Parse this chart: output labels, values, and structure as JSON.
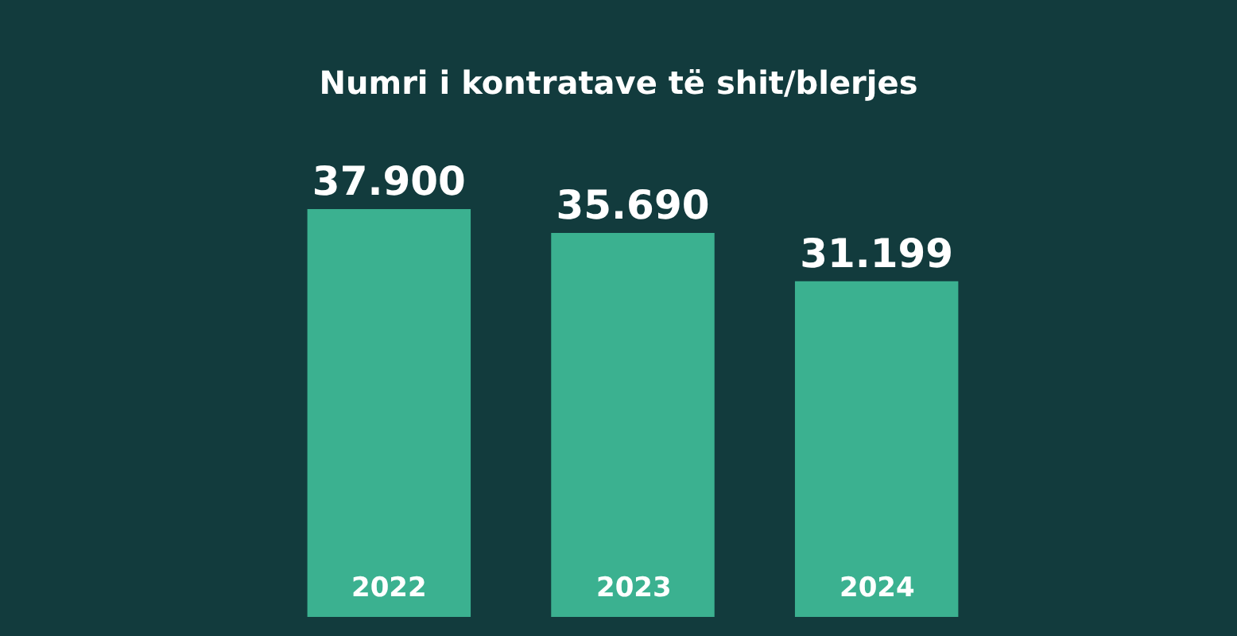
{
  "chart_data": {
    "type": "bar",
    "title": "Numri i kontratave të shit/blerjes",
    "categories": [
      "2022",
      "2023",
      "2024"
    ],
    "values": [
      37900,
      35690,
      31199
    ],
    "value_labels": [
      "37.900",
      "35.690",
      "31.199"
    ],
    "color": "#3bb190",
    "tick_labels": false,
    "grid": false,
    "legend": false
  }
}
